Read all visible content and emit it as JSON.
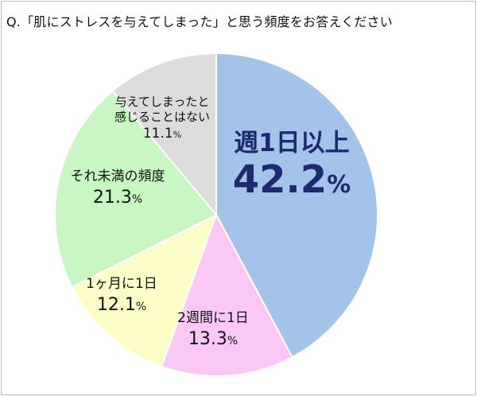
{
  "question": "Q.「肌にストレスを与えてしまった」と思う頻度をお答えください",
  "chart_data": {
    "type": "pie",
    "title": "Q.「肌にストレスを与えてしまった」と思う頻度をお答えください",
    "slices": [
      {
        "label": "週1日以上",
        "value": 42.2,
        "color": "#a4c3e8",
        "display": "42.2%"
      },
      {
        "label": "2週間に1日",
        "value": 13.3,
        "color": "#fbc8f6",
        "display": "13.3%"
      },
      {
        "label": "1ヶ月に1日",
        "value": 12.1,
        "color": "#fdfdc8",
        "display": "12.1%"
      },
      {
        "label": "それ未満の頻度",
        "value": 21.3,
        "color": "#c8f7c4",
        "display": "21.3%"
      },
      {
        "label": "与えてしまったと感じることはない",
        "value": 11.1,
        "color": "#dcdcdc",
        "display": "11.1%"
      }
    ]
  }
}
